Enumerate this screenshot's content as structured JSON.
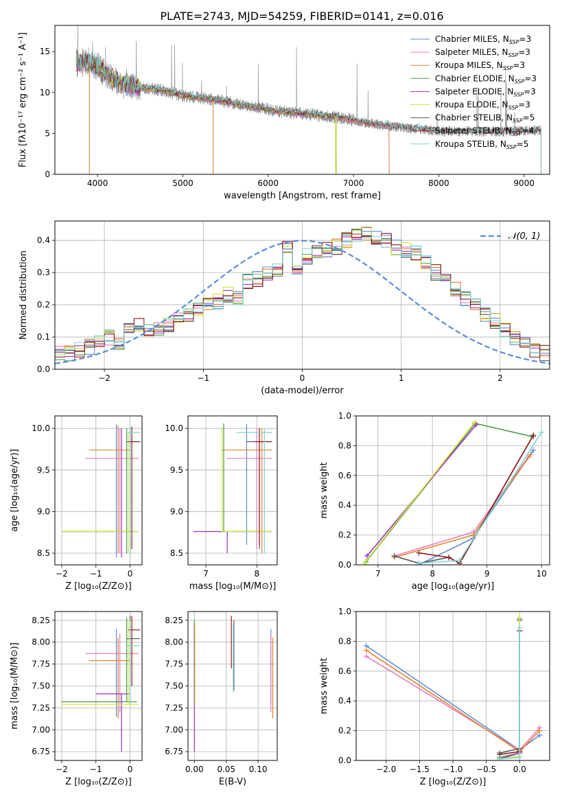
{
  "figure": {
    "title": "PLATE=2743, MJD=54259, FIBERID=0141, z=0.016"
  },
  "series_colors": {
    "Chabrier MILES": "#5b8bd6",
    "Salpeter MILES": "#e37fbd",
    "Kroupa MILES": "#e0812e",
    "Chabrier ELODIE": "#4a9a4a",
    "Salpeter ELODIE": "#9a2fbf",
    "Kroupa ELODIE": "#d4e83a",
    "Chabrier STELIB": "#555555",
    "Salpeter STELIB": "#8b1a1a",
    "Kroupa STELIB": "#7fd6d6",
    "data": "#808080",
    "normal_curve": "#5b8bd6"
  },
  "chart_data": [
    {
      "id": "spectrum",
      "type": "line",
      "xlabel": "wavelength [Angstrom, rest frame]",
      "ylabel": "Flux [fλ10⁻¹⁷ erg cm⁻² s⁻¹ A⁻¹]",
      "xlim": [
        3500,
        9300
      ],
      "ylim": [
        0,
        18.2
      ],
      "xticks": [
        4000,
        5000,
        6000,
        7000,
        8000,
        9000
      ],
      "yticks": [
        0,
        5,
        10,
        15
      ],
      "legend_position": "top-right",
      "legend": [
        "Chabrier MILES, N_SSP=3",
        "Salpeter MILES, N_SSP=3",
        "Kroupa MILES, N_SSP=3",
        "Chabrier ELODIE, N_SSP=3",
        "Salpeter ELODIE, N_SSP=3",
        "Kroupa ELODIE, N_SSP=3",
        "Chabrier STELIB, N_SSP=5",
        "Salpeter STELIB, N_SSP=4",
        "Kroupa STELIB, N_SSP=5"
      ],
      "legend_text": [
        [
          "Chabrier MILES, N",
          "SSP",
          "=3"
        ],
        [
          "Salpeter MILES, N",
          "SSP",
          "=3"
        ],
        [
          "Kroupa MILES, N",
          "SSP",
          "=3"
        ],
        [
          "Chabrier ELODIE, N",
          "SSP",
          "=3"
        ],
        [
          "Salpeter ELODIE, N",
          "SSP",
          "=3"
        ],
        [
          "Kroupa ELODIE, N",
          "SSP",
          "=3"
        ],
        [
          "Chabrier STELIB, N",
          "SSP",
          "=5"
        ],
        [
          "Salpeter STELIB, N",
          "SSP",
          "=4"
        ],
        [
          "Kroupa STELIB, N",
          "SSP",
          "=5"
        ]
      ],
      "continuum": {
        "x": [
          3750,
          3900,
          4000,
          4100,
          4300,
          4500,
          4800,
          5000,
          5300,
          5600,
          6000,
          6400,
          6800,
          7200,
          7600,
          8000,
          8500,
          9000,
          9200
        ],
        "y": [
          13.5,
          13.8,
          13.2,
          12.3,
          11.0,
          10.6,
          10.2,
          9.6,
          9.2,
          8.7,
          7.9,
          7.4,
          7.0,
          6.2,
          5.7,
          5.3,
          5.2,
          5.3,
          5.4
        ]
      },
      "model_ranges": {
        "MILES": [
          3750,
          7420
        ],
        "ELODIE": [
          3750,
          6800
        ],
        "STELIB": [
          3750,
          9200
        ]
      }
    },
    {
      "id": "residuals",
      "type": "line",
      "xlabel": "(data-model)/error",
      "ylabel": "Normed distribution",
      "xlim": [
        -2.5,
        2.5
      ],
      "ylim": [
        0,
        0.46
      ],
      "xticks": [
        -2,
        -1,
        0,
        1,
        2
      ],
      "xtick_labels": [
        "−2",
        "−1",
        "0",
        "1",
        "2"
      ],
      "yticks": [
        0.0,
        0.1,
        0.2,
        0.3,
        0.4
      ],
      "ytick_labels": [
        "0.0",
        "0.1",
        "0.2",
        "0.3",
        "0.4"
      ],
      "legend_position": "top-right",
      "legend": [
        "𝒩(0, 1)"
      ],
      "histogram_bin_width": 0.1,
      "histogram_envelope": [
        0.05,
        0.05,
        0.06,
        0.07,
        0.09,
        0.1,
        0.08,
        0.12,
        0.14,
        0.12,
        0.13,
        0.14,
        0.15,
        0.17,
        0.19,
        0.2,
        0.21,
        0.23,
        0.22,
        0.27,
        0.28,
        0.3,
        0.31,
        0.38,
        0.32,
        0.35,
        0.36,
        0.37,
        0.38,
        0.4,
        0.41,
        0.42,
        0.41,
        0.4,
        0.38,
        0.37,
        0.36,
        0.33,
        0.3,
        0.28,
        0.25,
        0.22,
        0.2,
        0.17,
        0.15,
        0.12,
        0.1,
        0.08,
        0.06,
        0.05
      ]
    },
    {
      "id": "age_vs_Z",
      "type": "scatter",
      "xlabel": "Z [log₁₀(Z/Z⊙)]",
      "ylabel": "age  [log₁₀(age/yr)]",
      "xlim": [
        -2.2,
        0.35
      ],
      "ylim": [
        8.36,
        10.15
      ],
      "xticks": [
        -2,
        -1,
        0
      ],
      "xtick_labels": [
        "−2",
        "−1",
        "0"
      ],
      "yticks": [
        8.5,
        9.0,
        9.5,
        10.0
      ],
      "ytick_labels": [
        "8.5",
        "9.0",
        "9.5",
        "10.0"
      ],
      "errorbars": [
        {
          "s": "Chabrier MILES",
          "x": -0.4,
          "y": 9.75,
          "dx": 0,
          "dy": [
            8.45,
            10.05
          ]
        },
        {
          "s": "Salpeter MILES",
          "x": -0.3,
          "y": 9.64,
          "dx": [
            -1.3,
            0.25
          ],
          "dy": [
            8.5,
            10.0
          ]
        },
        {
          "s": "Kroupa MILES",
          "x": -0.35,
          "y": 9.74,
          "dx": [
            -1.2,
            0.0
          ],
          "dy": [
            8.5,
            10.03
          ]
        },
        {
          "s": "Chabrier ELODIE",
          "x": -0.1,
          "y": 8.76,
          "dx": [
            -2.0,
            0.2
          ],
          "dy": [
            8.5,
            10.0
          ]
        },
        {
          "s": "Salpeter ELODIE",
          "x": -0.25,
          "y": 8.76,
          "dx": [
            -2.0,
            0.15
          ],
          "dy": [
            8.45,
            10.0
          ]
        },
        {
          "s": "Kroupa ELODIE",
          "x": -0.05,
          "y": 8.76,
          "dx": [
            -2.0,
            0.25
          ],
          "dy": [
            8.5,
            9.95
          ]
        },
        {
          "s": "Chabrier STELIB",
          "x": 0.0,
          "y": 9.84,
          "dx": [
            -0.1,
            0.3
          ],
          "dy": [
            8.5,
            10.0
          ]
        },
        {
          "s": "Salpeter STELIB",
          "x": 0.05,
          "y": 9.84,
          "dx": [
            -0.05,
            0.3
          ],
          "dy": [
            8.55,
            10.02
          ]
        },
        {
          "s": "Kroupa STELIB",
          "x": 0.0,
          "y": 9.95,
          "dx": [
            -0.1,
            0.3
          ],
          "dy": [
            8.45,
            10.02
          ]
        }
      ]
    },
    {
      "id": "age_vs_mass",
      "type": "scatter",
      "xlabel": "mass [log₁₀(M/M⊙)]",
      "ylabel": "",
      "xlim": [
        6.65,
        8.4
      ],
      "ylim": [
        8.36,
        10.15
      ],
      "xticks": [
        7,
        8
      ],
      "xtick_labels": [
        "7",
        "8"
      ],
      "yticks": [
        8.5,
        9.0,
        9.5,
        10.0
      ],
      "ytick_labels": [
        "8.5",
        "9.0",
        "9.5",
        "10.0"
      ],
      "errorbars": [
        {
          "s": "Chabrier MILES",
          "x": 7.8,
          "y": 9.75,
          "dx": 0,
          "dy": [
            8.6,
            10.05
          ]
        },
        {
          "s": "Salpeter MILES",
          "x": 8.0,
          "y": 9.64,
          "dx": [
            7.4,
            8.3
          ],
          "dy": [
            8.55,
            10.0
          ]
        },
        {
          "s": "Kroupa MILES",
          "x": 8.1,
          "y": 9.74,
          "dx": [
            7.3,
            8.3
          ],
          "dy": [
            8.5,
            10.0
          ]
        },
        {
          "s": "Chabrier ELODIE",
          "x": 7.35,
          "y": 8.76,
          "dx": [
            7.35,
            8.3
          ],
          "dy": [
            8.75,
            10.06
          ]
        },
        {
          "s": "Salpeter ELODIE",
          "x": 7.42,
          "y": 8.76,
          "dx": [
            6.75,
            8.3
          ],
          "dy": [
            8.5,
            8.76
          ]
        },
        {
          "s": "Kroupa ELODIE",
          "x": 7.32,
          "y": 8.76,
          "dx": [
            7.32,
            8.3
          ],
          "dy": [
            8.75,
            10.0
          ]
        },
        {
          "s": "Chabrier STELIB",
          "x": 8.05,
          "y": 9.84,
          "dx": [
            7.8,
            8.3
          ],
          "dy": [
            8.55,
            10.0
          ]
        },
        {
          "s": "Salpeter STELIB",
          "x": 8.05,
          "y": 9.84,
          "dx": [
            7.95,
            8.3
          ],
          "dy": [
            8.6,
            10.0
          ]
        },
        {
          "s": "Kroupa STELIB",
          "x": 8.15,
          "y": 9.95,
          "dx": [
            7.6,
            8.3
          ],
          "dy": [
            8.5,
            10.0
          ]
        }
      ]
    },
    {
      "id": "mass_weight_vs_age",
      "type": "line",
      "xlabel": "age  [log₁₀(age/yr)]",
      "ylabel": "mass weight",
      "xlim": [
        6.6,
        10.15
      ],
      "ylim": [
        0,
        1.0
      ],
      "xticks": [
        7,
        8,
        9,
        10
      ],
      "xtick_labels": [
        "7",
        "8",
        "9",
        "10"
      ],
      "yticks": [
        0.0,
        0.2,
        0.4,
        0.6,
        0.8,
        1.0
      ],
      "ytick_labels": [
        "0.0",
        "0.2",
        "0.4",
        "0.6",
        "0.8",
        "1.0"
      ],
      "series": [
        {
          "name": "Chabrier MILES",
          "x": [
            7.75,
            8.75,
            9.85
          ],
          "y": [
            0.0,
            0.18,
            0.77
          ]
        },
        {
          "name": "Salpeter MILES",
          "x": [
            7.3,
            8.75,
            9.75
          ],
          "y": [
            0.06,
            0.22,
            0.72
          ]
        },
        {
          "name": "Kroupa MILES",
          "x": [
            7.3,
            8.75,
            9.8
          ],
          "y": [
            0.05,
            0.2,
            0.74
          ]
        },
        {
          "name": "Chabrier ELODIE",
          "x": [
            6.78,
            8.78,
            9.85
          ],
          "y": [
            0.02,
            0.95,
            0.86
          ]
        },
        {
          "name": "Salpeter ELODIE",
          "x": [
            6.8,
            8.8
          ],
          "y": [
            0.06,
            0.94
          ]
        },
        {
          "name": "Kroupa ELODIE",
          "x": [
            6.75,
            8.78
          ],
          "y": [
            0.01,
            0.96
          ]
        },
        {
          "name": "Chabrier STELIB",
          "x": [
            7.3,
            7.75,
            8.3,
            8.5,
            9.85
          ],
          "y": [
            0.06,
            0.01,
            0.05,
            0.01,
            0.87
          ]
        },
        {
          "name": "Salpeter STELIB",
          "x": [
            7.75,
            8.3,
            8.5,
            9.85
          ],
          "y": [
            0.08,
            0.05,
            0.01,
            0.87
          ]
        },
        {
          "name": "Kroupa STELIB",
          "x": [
            7.75,
            8.5,
            10.0
          ],
          "y": [
            0.01,
            0.03,
            0.89
          ]
        }
      ]
    },
    {
      "id": "mass_vs_Z",
      "type": "scatter",
      "xlabel": "Z [log₁₀(Z/Z⊙)]",
      "ylabel": "mass [log₁₀(M/M⊙)]",
      "xlim": [
        -2.2,
        0.35
      ],
      "ylim": [
        6.65,
        8.35
      ],
      "xticks": [
        -2,
        -1,
        0
      ],
      "xtick_labels": [
        "−2",
        "−1",
        "0"
      ],
      "yticks": [
        6.75,
        7.0,
        7.25,
        7.5,
        7.75,
        8.0,
        8.25
      ],
      "ytick_labels": [
        "6.75",
        "7.00",
        "7.25",
        "7.50",
        "7.75",
        "8.00",
        "8.25"
      ],
      "errorbars": [
        {
          "s": "Chabrier MILES",
          "x": -0.4,
          "y": 7.8,
          "dx": 0,
          "dy": [
            7.15,
            8.15
          ]
        },
        {
          "s": "Salpeter MILES",
          "x": -0.3,
          "y": 7.87,
          "dx": [
            -1.3,
            0.25
          ],
          "dy": [
            7.2,
            8.1
          ]
        },
        {
          "s": "Kroupa MILES",
          "x": -0.35,
          "y": 7.79,
          "dx": [
            -1.2,
            0.0
          ],
          "dy": [
            7.13,
            8.05
          ]
        },
        {
          "s": "Chabrier ELODIE",
          "x": -0.1,
          "y": 7.32,
          "dx": [
            -2.0,
            0.2
          ],
          "dy": [
            7.32,
            8.28
          ]
        },
        {
          "s": "Salpeter ELODIE",
          "x": -0.25,
          "y": 7.41,
          "dx": [
            -1.0,
            0.0
          ],
          "dy": [
            6.75,
            7.41
          ]
        },
        {
          "s": "Kroupa ELODIE",
          "x": -0.05,
          "y": 7.29,
          "dx": [
            -2.0,
            0.25
          ],
          "dy": [
            7.29,
            8.25
          ]
        },
        {
          "s": "Chabrier STELIB",
          "x": 0.0,
          "y": 8.04,
          "dx": [
            -0.1,
            0.3
          ],
          "dy": [
            7.3,
            8.3
          ]
        },
        {
          "s": "Salpeter STELIB",
          "x": 0.05,
          "y": 8.14,
          "dx": [
            -0.05,
            0.3
          ],
          "dy": [
            7.5,
            8.3
          ]
        },
        {
          "s": "Kroupa STELIB",
          "x": 0.0,
          "y": 7.96,
          "dx": [
            -0.1,
            0.3
          ],
          "dy": [
            7.3,
            8.25
          ]
        }
      ]
    },
    {
      "id": "mass_vs_EBV",
      "type": "scatter",
      "xlabel": "E(B-V)",
      "ylabel": "",
      "xlim": [
        -0.01,
        0.13
      ],
      "ylim": [
        6.65,
        8.35
      ],
      "xticks": [
        0.0,
        0.05,
        0.1
      ],
      "xtick_labels": [
        "0.00",
        "0.05",
        "0.10"
      ],
      "yticks": [
        6.75,
        7.0,
        7.25,
        7.5,
        7.75,
        8.0,
        8.25
      ],
      "ytick_labels": [
        "6.75",
        "7.00",
        "7.25",
        "7.50",
        "7.75",
        "8.00",
        "8.25"
      ],
      "errorbars": [
        {
          "s": "Chabrier MILES",
          "x": 0.12,
          "y": 7.8,
          "dx": 0,
          "dy": [
            7.3,
            8.15
          ]
        },
        {
          "s": "Salpeter MILES",
          "x": 0.12,
          "y": 7.87,
          "dx": 0,
          "dy": [
            7.2,
            8.1
          ]
        },
        {
          "s": "Kroupa MILES",
          "x": 0.123,
          "y": 7.79,
          "dx": 0,
          "dy": [
            7.13,
            8.05
          ]
        },
        {
          "s": "Chabrier ELODIE",
          "x": 0.0,
          "y": 7.32,
          "dx": 0,
          "dy": [
            7.3,
            8.25
          ]
        },
        {
          "s": "Salpeter ELODIE",
          "x": 0.0,
          "y": 7.41,
          "dx": 0,
          "dy": [
            6.75,
            8.2
          ]
        },
        {
          "s": "Kroupa ELODIE",
          "x": 0.001,
          "y": 7.29,
          "dx": 0,
          "dy": [
            7.29,
            8.2
          ]
        },
        {
          "s": "Chabrier STELIB",
          "x": 0.062,
          "y": 8.04,
          "dx": 0,
          "dy": [
            7.45,
            8.25
          ]
        },
        {
          "s": "Salpeter STELIB",
          "x": 0.058,
          "y": 8.14,
          "dx": 0,
          "dy": [
            7.7,
            8.3
          ]
        },
        {
          "s": "Kroupa STELIB",
          "x": 0.061,
          "y": 7.96,
          "dx": 0,
          "dy": [
            7.42,
            8.2
          ]
        }
      ]
    },
    {
      "id": "mass_weight_vs_Z",
      "type": "line",
      "xlabel": "Z [log₁₀(Z/Z⊙)]",
      "ylabel": "mass weight",
      "xlim": [
        -2.45,
        0.45
      ],
      "ylim": [
        0,
        1.0
      ],
      "xticks": [
        -2.0,
        -1.5,
        -1.0,
        -0.5,
        0.0
      ],
      "xtick_labels": [
        "−2.0",
        "−1.5",
        "−1.0",
        "−0.5",
        "0.0"
      ],
      "yticks": [
        0.0,
        0.2,
        0.4,
        0.6,
        0.8,
        1.0
      ],
      "ytick_labels": [
        "0.0",
        "0.2",
        "0.4",
        "0.6",
        "0.8",
        "1.0"
      ],
      "series": [
        {
          "name": "Chabrier MILES",
          "x": [
            -2.3,
            0.0,
            0.3
          ],
          "y": [
            0.77,
            0.07,
            0.17
          ]
        },
        {
          "name": "Salpeter MILES",
          "x": [
            -2.3,
            0.0,
            0.3
          ],
          "y": [
            0.7,
            0.07,
            0.22
          ]
        },
        {
          "name": "Kroupa MILES",
          "x": [
            -2.3,
            0.0,
            0.3
          ],
          "y": [
            0.74,
            0.06,
            0.2
          ]
        },
        {
          "name": "Chabrier ELODIE",
          "x": [
            -0.3,
            0.0,
            0.0
          ],
          "y": [
            0.02,
            0.05,
            0.95
          ]
        },
        {
          "name": "Salpeter ELODIE",
          "x": [
            -0.3,
            0.0,
            0.0
          ],
          "y": [
            0.01,
            0.05,
            0.94
          ]
        },
        {
          "name": "Kroupa ELODIE",
          "x": [
            -0.3,
            0.0,
            0.0
          ],
          "y": [
            0.01,
            0.03,
            0.96
          ]
        },
        {
          "name": "Chabrier STELIB",
          "x": [
            -0.3,
            0.0,
            0.0
          ],
          "y": [
            0.05,
            0.08,
            0.87
          ]
        },
        {
          "name": "Salpeter STELIB",
          "x": [
            -0.3,
            0.0,
            0.0
          ],
          "y": [
            0.04,
            0.06,
            0.87
          ]
        },
        {
          "name": "Kroupa STELIB",
          "x": [
            -0.3,
            0.0,
            0.0
          ],
          "y": [
            0.01,
            0.02,
            0.89
          ]
        }
      ]
    }
  ]
}
